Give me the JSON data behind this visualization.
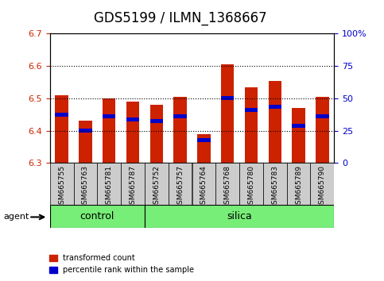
{
  "title": "GDS5199 / ILMN_1368667",
  "samples": [
    "GSM665755",
    "GSM665763",
    "GSM665781",
    "GSM665787",
    "GSM665752",
    "GSM665757",
    "GSM665764",
    "GSM665768",
    "GSM665780",
    "GSM665783",
    "GSM665789",
    "GSM665790"
  ],
  "groups": [
    "control",
    "control",
    "control",
    "control",
    "silica",
    "silica",
    "silica",
    "silica",
    "silica",
    "silica",
    "silica",
    "silica"
  ],
  "bar_values": [
    6.51,
    6.43,
    6.5,
    6.49,
    6.48,
    6.505,
    6.39,
    6.605,
    6.535,
    6.555,
    6.47,
    6.505
  ],
  "percentile_values": [
    6.45,
    6.4,
    6.445,
    6.435,
    6.43,
    6.445,
    6.37,
    6.5,
    6.465,
    6.475,
    6.415,
    6.445
  ],
  "ymin": 6.3,
  "ymax": 6.7,
  "yticks": [
    6.3,
    6.4,
    6.5,
    6.6,
    6.7
  ],
  "y2ticks_vals": [
    6.3,
    6.4,
    6.5,
    6.6,
    6.7
  ],
  "y2ticks_labels": [
    "0",
    "25",
    "50",
    "75",
    "100%"
  ],
  "bar_color": "#CC2200",
  "percentile_color": "#0000CC",
  "bar_bottom": 6.3,
  "group_control_label": "control",
  "group_silica_label": "silica",
  "group_bg_color": "#77EE77",
  "tick_bg_color": "#CCCCCC",
  "legend_tc": "transformed count",
  "legend_pr": "percentile rank within the sample",
  "agent_label": "agent",
  "title_fontsize": 12,
  "axis_label_color_left": "#CC2200",
  "axis_label_color_right": "#0000CC"
}
